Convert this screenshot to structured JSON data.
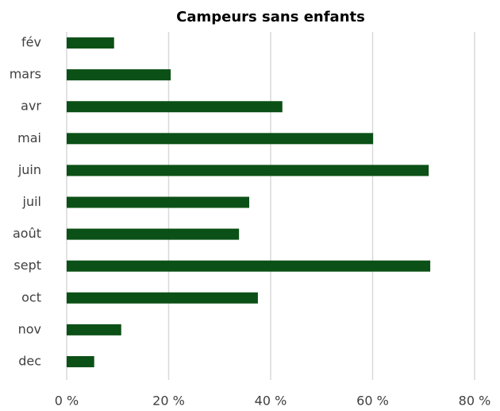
{
  "chart_data": {
    "type": "bar",
    "orientation": "horizontal",
    "title": "Campeurs sans enfants",
    "categories": [
      "fév",
      "mars",
      "avr",
      "mai",
      "juin",
      "juil",
      "août",
      "sept",
      "oct",
      "nov",
      "dec"
    ],
    "values": [
      9.3,
      20.4,
      42.3,
      60.1,
      71,
      35.8,
      33.8,
      71.3,
      37.5,
      10.7,
      5.4
    ],
    "color": "#0b5016",
    "xlim": [
      0,
      80
    ],
    "xticks": [
      {
        "value": 0,
        "label": "0 %"
      },
      {
        "value": 20,
        "label": "20 %"
      },
      {
        "value": 40,
        "label": "40 %"
      },
      {
        "value": 60,
        "label": "60 %"
      },
      {
        "value": 80,
        "label": "80 %"
      }
    ],
    "grid": true
  }
}
